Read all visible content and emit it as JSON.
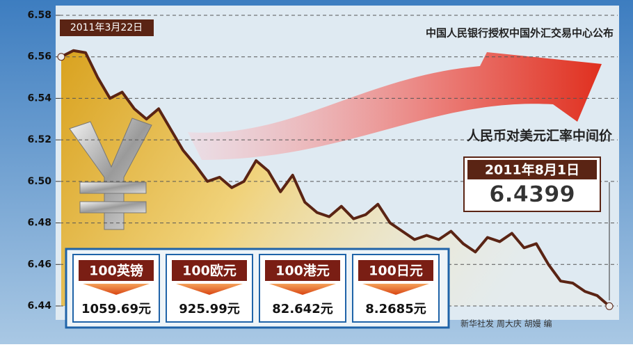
{
  "chart_data": {
    "type": "line",
    "source_note": "中国人民银行授权中国外汇交易中心公布",
    "series_label": "人民币对美元汇率中间价",
    "start_label": "2011年3月22日",
    "end_label": "2011年8月1日",
    "credit": "新华社发 周大庆 胡嫚 编",
    "categories": [
      null,
      null,
      null,
      null,
      null,
      null,
      null,
      null,
      null,
      null,
      null,
      null,
      null,
      null,
      null,
      null,
      null,
      null,
      null,
      null,
      null,
      null,
      null,
      null,
      null,
      null,
      null,
      null,
      null,
      null,
      null,
      null,
      null,
      null,
      null,
      null,
      null,
      null,
      null,
      null,
      null,
      null,
      null,
      null,
      null,
      null
    ],
    "values": [
      6.56,
      6.563,
      6.562,
      6.55,
      6.54,
      6.543,
      6.535,
      6.53,
      6.535,
      6.525,
      6.515,
      6.508,
      6.5,
      6.502,
      6.497,
      6.5,
      6.51,
      6.505,
      6.495,
      6.503,
      6.49,
      6.485,
      6.483,
      6.488,
      6.482,
      6.484,
      6.489,
      6.48,
      6.476,
      6.472,
      6.474,
      6.472,
      6.476,
      6.47,
      6.466,
      6.473,
      6.471,
      6.475,
      6.468,
      6.47,
      6.46,
      6.452,
      6.451,
      6.447,
      6.445,
      6.4399
    ],
    "color": "#5a2414",
    "ylim": [
      6.44,
      6.58
    ],
    "yticks": [
      6.44,
      6.46,
      6.48,
      {
        "value": 6.5,
        "label": "6.50"
      },
      6.52,
      6.54,
      6.56,
      6.58
    ],
    "grid": true,
    "rates": [
      {
        "unit": "100英镑",
        "value": "1059.69元"
      },
      {
        "unit": "100欧元",
        "value": "925.99元"
      },
      {
        "unit": "100港元",
        "value": "82.642元"
      },
      {
        "unit": "100日元",
        "value": "8.2685元"
      }
    ]
  }
}
